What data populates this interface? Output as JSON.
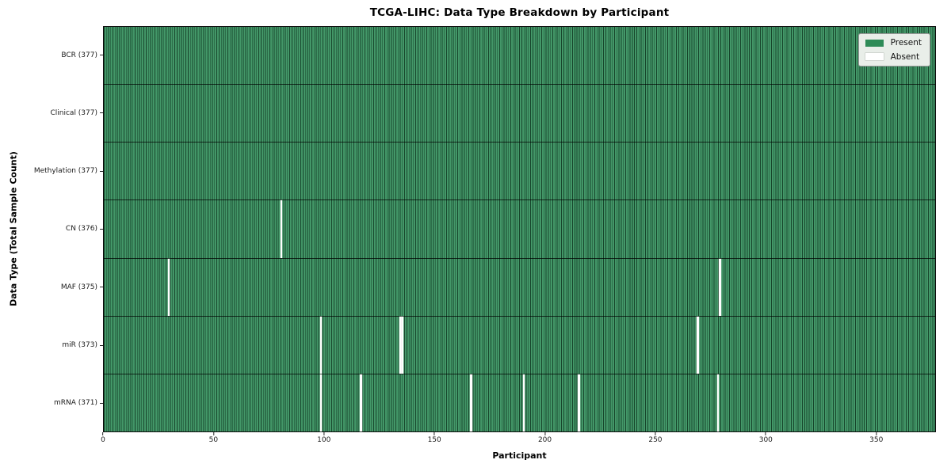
{
  "chart_data": {
    "type": "heatmap",
    "title": "TCGA-LIHC: Data Type Breakdown by Participant",
    "xlabel": "Participant",
    "ylabel": "Data Type (Total Sample Count)",
    "x_ticks": [
      0,
      50,
      100,
      150,
      200,
      250,
      300,
      350
    ],
    "x_range": [
      0,
      377
    ],
    "n_participants": 377,
    "grid": false,
    "legend_position": "upper-right",
    "legend": [
      {
        "label": "Present",
        "color": "#2e8b57"
      },
      {
        "label": "Absent",
        "color": "#ffffff"
      }
    ],
    "colors": {
      "present": "#2e8b57",
      "absent": "#ffffff",
      "cell_edge": "#1b3d29",
      "legend_bg": "#e9eee9",
      "legend_border": "#999999"
    },
    "rows": [
      {
        "name": "BCR",
        "label": "BCR (377)",
        "total": 377,
        "absent_participants": []
      },
      {
        "name": "Clinical",
        "label": "Clinical (377)",
        "total": 377,
        "absent_participants": []
      },
      {
        "name": "Methylation",
        "label": "Methylation (377)",
        "total": 377,
        "absent_participants": []
      },
      {
        "name": "CN",
        "label": "CN (376)",
        "total": 376,
        "absent_participants": [
          80
        ]
      },
      {
        "name": "MAF",
        "label": "MAF (375)",
        "total": 375,
        "absent_participants": [
          29,
          279
        ]
      },
      {
        "name": "miR",
        "label": "miR (373)",
        "total": 373,
        "absent_participants": [
          98,
          134,
          135,
          269
        ]
      },
      {
        "name": "mRNA",
        "label": "mRNA (371)",
        "total": 371,
        "absent_participants": [
          98,
          116,
          166,
          190,
          215,
          278
        ]
      }
    ]
  }
}
